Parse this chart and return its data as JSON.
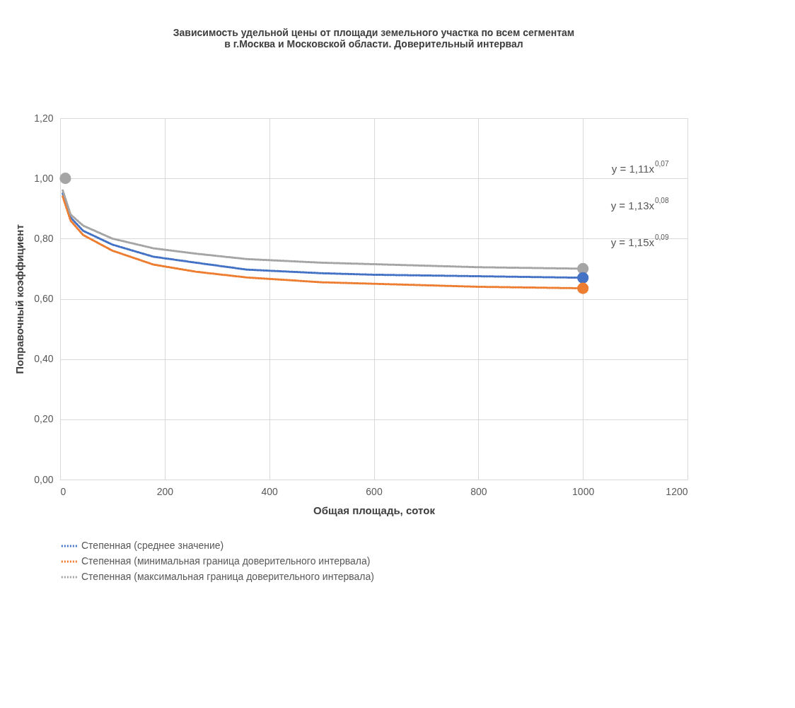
{
  "chart_data": {
    "type": "line",
    "title": "Зависимость удельной цены от площади земельного участка по всем сегментам\nв г.Москва и Московской области. Доверительный интервал",
    "xlabel": "Общая площадь, соток",
    "ylabel": "Поправочный коэффициент",
    "xlim": [
      0,
      1200
    ],
    "xticks": [
      0,
      200,
      400,
      600,
      800,
      1000,
      1200
    ],
    "ylim": [
      0,
      1.2
    ],
    "yticks": [
      {
        "value": 0,
        "label": "0,00"
      },
      {
        "value": 0.2,
        "label": "0,20"
      },
      {
        "value": 0.4,
        "label": "0,40"
      },
      {
        "value": 0.6,
        "label": "0,60"
      },
      {
        "value": 0.8,
        "label": "0,80"
      },
      {
        "value": 1.0,
        "label": "1,00"
      },
      {
        "value": 1.2,
        "label": "1,20"
      }
    ],
    "grid": true,
    "legend": "bottom",
    "marker": "none",
    "line_style": "dotted",
    "series": [
      {
        "name": "Степенная (среднее значение)",
        "color": "#4472c4",
        "x": [
          5,
          20,
          44,
          100,
          178,
          260,
          357,
          500,
          600,
          800,
          1000
        ],
        "values": [
          0.95,
          0.87,
          0.826,
          0.78,
          0.74,
          0.72,
          0.697,
          0.685,
          0.68,
          0.675,
          0.67
        ]
      },
      {
        "name": "Степенная (минимальная граница доверительного интервала)",
        "color": "#ed7d31",
        "x": [
          5,
          20,
          44,
          100,
          178,
          260,
          357,
          500,
          600,
          800,
          1000
        ],
        "values": [
          0.94,
          0.86,
          0.812,
          0.76,
          0.714,
          0.69,
          0.671,
          0.655,
          0.65,
          0.64,
          0.635
        ]
      },
      {
        "name": "Степенная (максимальная граница доверительного интервала)",
        "color": "#a5a5a5",
        "x": [
          5,
          20,
          44,
          100,
          178,
          260,
          357,
          500,
          600,
          800,
          1000
        ],
        "values": [
          0.96,
          0.88,
          0.843,
          0.8,
          0.768,
          0.75,
          0.732,
          0.72,
          0.715,
          0.705,
          0.7
        ]
      },
      {
        "type": "scatter",
        "marker": "circle",
        "x": [
          10,
          1000,
          1000,
          1000
        ],
        "values": [
          1.0,
          0.7,
          0.67,
          0.635
        ],
        "colors": [
          "#a5a5a5",
          "#a5a5a5",
          "#4472c4",
          "#ed7d31"
        ]
      }
    ],
    "annotations": [
      "y = 1,11x$^{0,07}$",
      "y = 1,13x$^{0,08}$",
      "y = 1,15x$^{0,09}$"
    ]
  }
}
